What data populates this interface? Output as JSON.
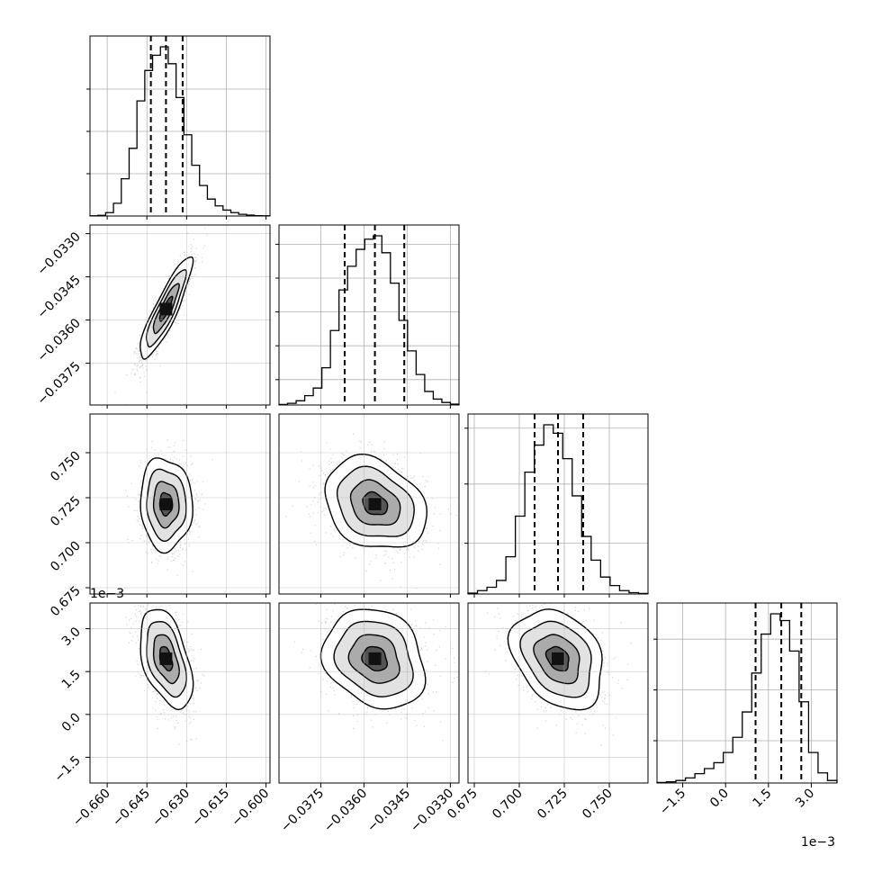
{
  "chart_data": {
    "type": "corner",
    "dimensions": 4,
    "offset_texts": {
      "param_3_y": "1e−3",
      "param_3_x": "1e−3"
    },
    "params": [
      {
        "range": [
          -0.6665,
          -0.5985
        ],
        "ticks": [
          -0.66,
          -0.645,
          -0.63,
          -0.615,
          -0.6
        ],
        "tick_labels": [
          "−0.660",
          "−0.645",
          "−0.630",
          "−0.615",
          "−0.600"
        ],
        "quantiles": [
          -0.6435,
          -0.6378,
          -0.6315
        ],
        "hist": [
          0.1,
          0.4,
          2.0,
          7.5,
          22,
          40,
          68,
          86,
          95,
          100,
          90,
          70,
          48,
          30,
          18,
          10,
          6,
          3.5,
          2.0,
          1.0,
          0.5,
          0.2,
          0.1
        ],
        "hist_grid_y": [
          25,
          50,
          75
        ]
      },
      {
        "range": [
          -0.03895,
          -0.0327
        ],
        "ticks": [
          -0.033,
          -0.0345,
          -0.036,
          -0.0375
        ],
        "tick_labels": [
          "−0.0330",
          "−0.0345",
          "−0.0360",
          "−0.0375"
        ],
        "x_ticks": [
          -0.0375,
          -0.036,
          -0.0345,
          -0.033
        ],
        "x_tick_labels": [
          "−0.0375",
          "−0.0360",
          "−0.0345",
          "−0.0330"
        ],
        "quantiles": [
          -0.03667,
          -0.03562,
          -0.0346
        ],
        "hist": [
          0.3,
          1.0,
          2.5,
          5.5,
          10,
          22,
          44,
          68,
          82,
          92,
          98,
          100,
          90,
          72,
          50,
          32,
          18,
          8,
          3.5,
          1.5,
          0.5
        ],
        "hist_grid_y": [
          15,
          35,
          55,
          75,
          95
        ]
      },
      {
        "range": [
          0.6715,
          0.7715
        ],
        "ticks": [
          0.675,
          0.7,
          0.725,
          0.75
        ],
        "tick_labels": [
          "0.675",
          "0.700",
          "0.725",
          "0.750"
        ],
        "quantiles": [
          0.7085,
          0.7215,
          0.7355
        ],
        "hist": [
          0.5,
          2.0,
          4.0,
          8.0,
          22,
          46,
          72,
          88,
          100,
          95,
          80,
          58,
          34,
          20,
          10,
          5,
          2,
          0.8,
          0.3
        ],
        "hist_grid_y": [
          30,
          65,
          98
        ]
      },
      {
        "range": [
          -2.4,
          3.9
        ],
        "ticks": [
          -1.5,
          0.0,
          1.5,
          3.0
        ],
        "tick_labels": [
          "−1.5",
          "0.0",
          "1.5",
          "3.0"
        ],
        "quantiles": [
          1.05,
          1.95,
          2.65
        ],
        "hist": [
          0.3,
          0.7,
          1.5,
          3.0,
          5.5,
          8.5,
          12,
          18,
          27,
          42,
          65,
          88,
          100,
          96,
          78,
          48,
          18,
          6,
          1.5
        ],
        "hist_grid_y": [
          25,
          55,
          85
        ]
      }
    ],
    "pairs": [
      {
        "x": 0,
        "y": 1,
        "center": [
          -0.6378,
          -0.03562
        ],
        "sd": [
          0.0048,
          0.00086
        ],
        "rho": 0.88
      },
      {
        "x": 0,
        "y": 2,
        "center": [
          -0.6378,
          0.7215
        ],
        "sd": [
          0.0048,
          0.0125
        ],
        "rho": -0.05
      },
      {
        "x": 1,
        "y": 2,
        "center": [
          -0.03562,
          0.7215
        ],
        "sd": [
          0.00086,
          0.0125
        ],
        "rho": -0.25
      },
      {
        "x": 0,
        "y": 3,
        "center": [
          -0.6378,
          1.95
        ],
        "sd": [
          0.0048,
          0.85
        ],
        "rho": -0.45
      },
      {
        "x": 1,
        "y": 3,
        "center": [
          -0.03562,
          1.95
        ],
        "sd": [
          0.00086,
          0.85
        ],
        "rho": -0.2
      },
      {
        "x": 2,
        "y": 3,
        "center": [
          0.7215,
          1.95
        ],
        "sd": [
          0.0125,
          0.85
        ],
        "rho": -0.3
      }
    ]
  }
}
